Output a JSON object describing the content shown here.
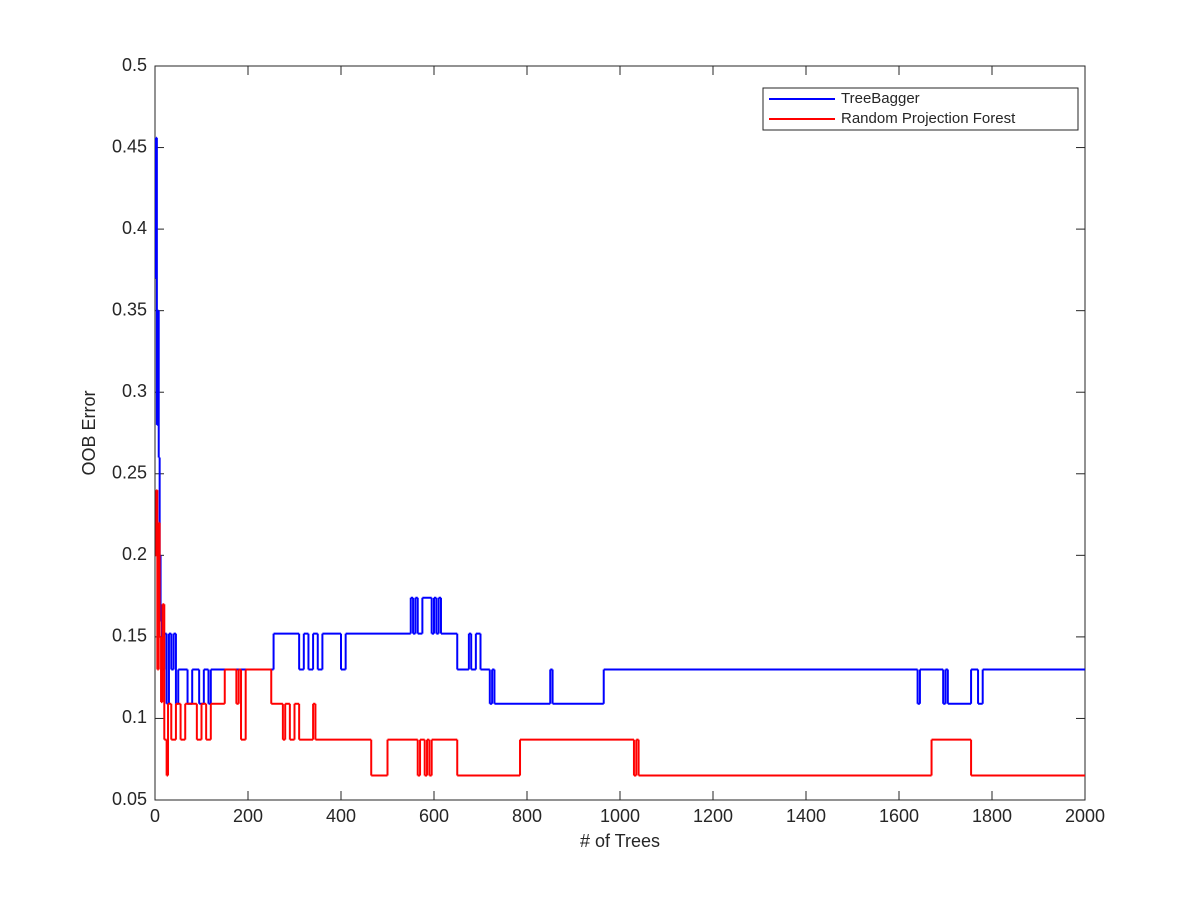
{
  "chart_data": {
    "type": "line",
    "drawstyle": "steps-post",
    "xlabel": "# of Trees",
    "ylabel": "OOB Error",
    "xlim": [
      0,
      2000
    ],
    "xticks": [
      0,
      200,
      400,
      600,
      800,
      1000,
      1200,
      1400,
      1600,
      1800,
      2000
    ],
    "ylim": [
      0.05,
      0.5
    ],
    "yticks": [
      0.05,
      0.1,
      0.15,
      0.2,
      0.25,
      0.3,
      0.35,
      0.4,
      0.45,
      0.5
    ],
    "legend": "upper right",
    "series": [
      {
        "name": "TreeBagger",
        "color": "#0000ff",
        "x": [
          1,
          2,
          4,
          6,
          8,
          10,
          12,
          15,
          20,
          25,
          30,
          35,
          40,
          45,
          50,
          70,
          80,
          95,
          105,
          115,
          120,
          255,
          310,
          320,
          330,
          340,
          350,
          360,
          400,
          410,
          550,
          555,
          560,
          565,
          575,
          595,
          600,
          605,
          610,
          615,
          650,
          675,
          680,
          690,
          700,
          720,
          725,
          730,
          850,
          855,
          965,
          1640,
          1645,
          1695,
          1700,
          1705,
          1755,
          1770,
          1780,
          2000
        ],
        "values": [
          0.37,
          0.456,
          0.28,
          0.35,
          0.26,
          0.2,
          0.16,
          0.13,
          0.152,
          0.109,
          0.152,
          0.13,
          0.152,
          0.109,
          0.13,
          0.109,
          0.13,
          0.109,
          0.13,
          0.109,
          0.13,
          0.152,
          0.13,
          0.152,
          0.13,
          0.152,
          0.13,
          0.152,
          0.13,
          0.152,
          0.174,
          0.152,
          0.174,
          0.152,
          0.174,
          0.152,
          0.174,
          0.152,
          0.174,
          0.152,
          0.13,
          0.152,
          0.13,
          0.152,
          0.13,
          0.109,
          0.13,
          0.109,
          0.13,
          0.109,
          0.13,
          0.109,
          0.13,
          0.109,
          0.13,
          0.109,
          0.13,
          0.109,
          0.13,
          0.13
        ]
      },
      {
        "name": "Random Projection Forest",
        "color": "#ff0000",
        "x": [
          1,
          3,
          5,
          8,
          10,
          13,
          16,
          20,
          25,
          28,
          35,
          45,
          55,
          65,
          90,
          100,
          110,
          120,
          150,
          175,
          180,
          185,
          195,
          250,
          275,
          280,
          290,
          300,
          310,
          340,
          345,
          465,
          500,
          565,
          570,
          580,
          585,
          590,
          595,
          650,
          785,
          1030,
          1035,
          1040,
          1670,
          1755,
          2000
        ],
        "values": [
          0.2,
          0.24,
          0.13,
          0.22,
          0.15,
          0.11,
          0.17,
          0.087,
          0.065,
          0.109,
          0.087,
          0.109,
          0.087,
          0.109,
          0.087,
          0.109,
          0.087,
          0.109,
          0.13,
          0.109,
          0.13,
          0.087,
          0.13,
          0.109,
          0.087,
          0.109,
          0.087,
          0.109,
          0.087,
          0.109,
          0.087,
          0.065,
          0.087,
          0.065,
          0.087,
          0.065,
          0.087,
          0.065,
          0.087,
          0.065,
          0.087,
          0.065,
          0.087,
          0.065,
          0.087,
          0.065,
          0.065
        ]
      }
    ]
  }
}
